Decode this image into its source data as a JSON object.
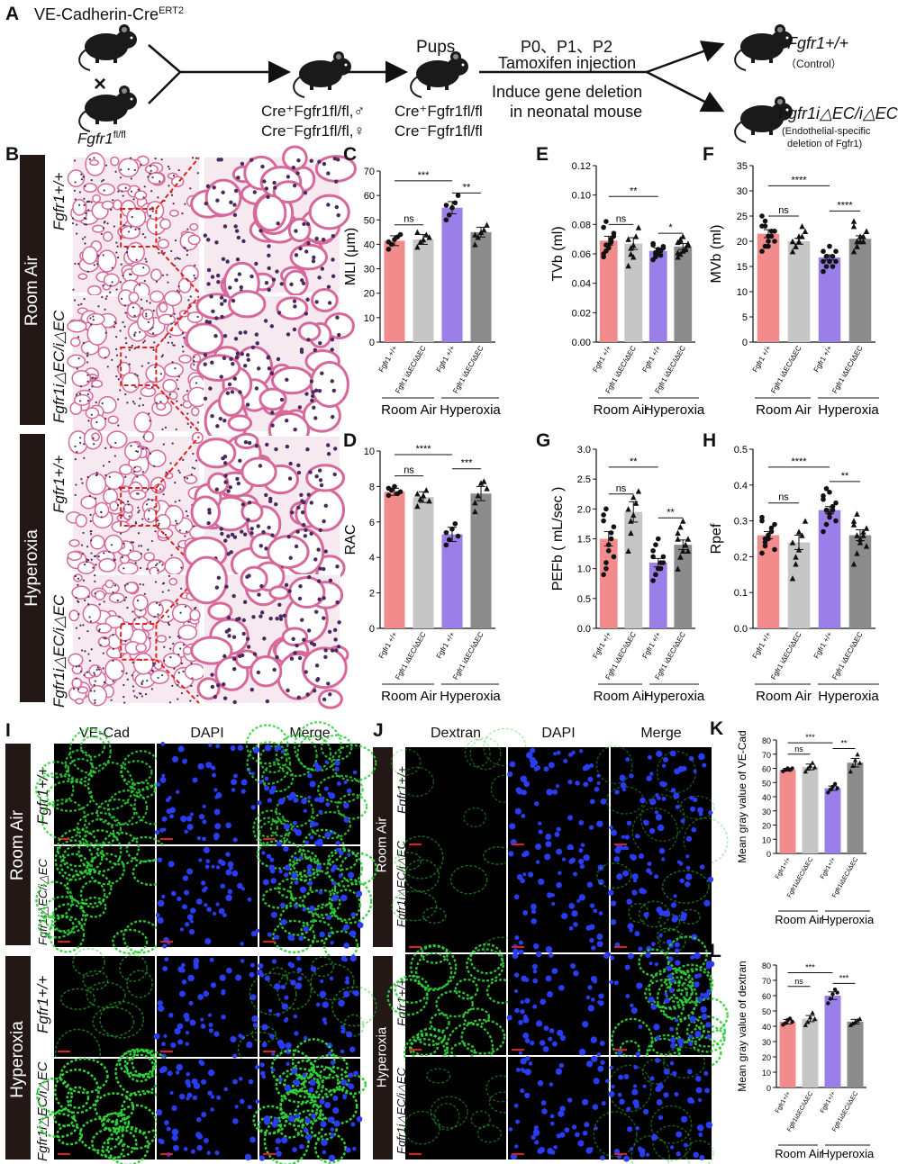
{
  "panel_letters": {
    "A": "A",
    "B": "B",
    "C": "C",
    "D": "D",
    "E": "E",
    "F": "F",
    "G": "G",
    "H": "H",
    "I": "I",
    "J": "J",
    "K": "K",
    "L": "L"
  },
  "schematic": {
    "mouse_line_1": "VE-Cadherin-Cre",
    "mouse_line_1_sup": "ERT2",
    "cross": "×",
    "mouse_line_2": "Fgfr1",
    "mouse_line_2_sup": "fl/fl",
    "offspring_1": "Cre⁺Fgfr1fl/fl,♂",
    "offspring_2": "Cre⁻Fgfr1fl/fl,♀",
    "pups_label": "Pups",
    "pups_1": "Cre⁺Fgfr1fl/fl",
    "pups_2": "Cre⁻Fgfr1fl/fl",
    "injection_line_1": "P0、P1、P2",
    "injection_line_2": "Tamoxifen injection",
    "deletion_line_1": "Induce gene deletion",
    "deletion_line_2": "in neonatal mouse",
    "result_1": "Fgfr1+/+",
    "result_1_note": "（Control）",
    "result_2": "Fgfr1i△EC/i△EC",
    "result_2_note_1": "(Endothelial-specific",
    "result_2_note_2": "deletion of Fgfr1)"
  },
  "histology": {
    "group_1": "Room Air",
    "group_2": "Hyperoxia",
    "row_wt": "Fgfr1+/+",
    "row_ko": "Fgfr1i△EC/i△EC"
  },
  "fluorescence_I": {
    "cols": [
      "VE-Cad",
      "DAPI",
      "Merge"
    ],
    "group_1": "Room Air",
    "group_2": "Hyperoxia",
    "row_wt": "Fgfr1+/+",
    "row_ko": "Fgfr1i△EC/i△EC"
  },
  "fluorescence_J": {
    "cols": [
      "Dextran",
      "DAPI",
      "Merge"
    ],
    "group_1": "Room Air",
    "group_2": "Hyperoxia",
    "row_wt": "Fgfr1+/+",
    "row_ko": "Fgfr1i△EC/i△EC"
  },
  "colors": {
    "room_air_wt": "#f28b8c",
    "room_air_ko": "#c6c6c6",
    "hyperoxia_wt": "#9b7fe8",
    "hyperoxia_ko": "#8c8c8c"
  },
  "chart_data": [
    {
      "panel": "C",
      "type": "bar",
      "ylabel": "MLI (μm)",
      "ylim": [
        0,
        70
      ],
      "yticks": [
        0,
        10,
        20,
        30,
        40,
        50,
        60,
        70
      ],
      "categories": [
        "Fgfr1 +/+",
        "Fgfr1 iΔEC/iΔEC",
        "Fgfr1 +/+",
        "Fgfr1 iΔEC/iΔEC"
      ],
      "groups": [
        "Room Air",
        "Hyperoxia"
      ],
      "values": [
        41.5,
        42,
        55,
        45
      ],
      "errors": [
        2,
        2,
        2.5,
        2
      ],
      "points": [
        [
          38,
          40,
          42,
          43,
          44,
          41
        ],
        [
          39,
          41,
          42,
          44,
          43,
          45
        ],
        [
          50,
          52,
          55,
          57,
          60,
          56
        ],
        [
          40,
          43,
          45,
          46,
          48,
          44
        ]
      ],
      "sig": [
        {
          "a": 0,
          "b": 1,
          "label": "ns",
          "y": 48
        },
        {
          "a": 0,
          "b": 2,
          "label": "***",
          "y": 66
        },
        {
          "a": 2,
          "b": 3,
          "label": "**",
          "y": 61
        }
      ]
    },
    {
      "panel": "D",
      "type": "bar",
      "ylabel": "RAC",
      "ylim": [
        0,
        10
      ],
      "yticks": [
        0,
        2,
        4,
        6,
        8,
        10
      ],
      "categories": [
        "Fgfr1 +/+",
        "Fgfr1 iΔEC/iΔEC",
        "Fgfr1 +/+",
        "Fgfr1 iΔEC/iΔEC"
      ],
      "groups": [
        "Room Air",
        "Hyperoxia"
      ],
      "values": [
        7.7,
        7.4,
        5.3,
        7.6
      ],
      "errors": [
        0.2,
        0.3,
        0.4,
        0.4
      ],
      "points": [
        [
          7.5,
          7.8,
          8.0,
          7.6,
          7.7,
          7.9
        ],
        [
          6.9,
          7.3,
          7.5,
          7.8,
          7.2,
          7.6
        ],
        [
          4.7,
          5.0,
          5.6,
          5.9,
          5.2,
          5.4
        ],
        [
          6.6,
          7.5,
          8.2,
          8.3,
          7.9,
          7.1
        ]
      ],
      "sig": [
        {
          "a": 0,
          "b": 1,
          "label": "ns",
          "y": 8.6
        },
        {
          "a": 0,
          "b": 2,
          "label": "****",
          "y": 9.8
        },
        {
          "a": 2,
          "b": 3,
          "label": "***",
          "y": 9.0
        }
      ]
    },
    {
      "panel": "E",
      "type": "bar",
      "ylabel": "TVb (ml)",
      "ylim": [
        0,
        0.12
      ],
      "yticks": [
        0.0,
        0.02,
        0.04,
        0.06,
        0.08,
        0.1,
        0.12
      ],
      "categories": [
        "Fgfr1 +/+",
        "Fgfr1 iΔEC/iΔEC",
        "Fgfr1 +/+",
        "Fgfr1 iΔEC/iΔEC"
      ],
      "groups": [
        "Room Air",
        "Hyperoxia"
      ],
      "values": [
        0.069,
        0.067,
        0.062,
        0.065
      ],
      "errors": [
        0.003,
        0.004,
        0.002,
        0.002
      ],
      "points": [
        [
          0.058,
          0.062,
          0.066,
          0.07,
          0.074,
          0.078,
          0.082,
          0.064,
          0.068,
          0.072,
          0.06,
          0.066
        ],
        [
          0.052,
          0.06,
          0.066,
          0.072,
          0.078,
          0.07,
          0.064,
          0.058
        ],
        [
          0.056,
          0.058,
          0.06,
          0.062,
          0.064,
          0.066,
          0.061,
          0.063,
          0.059,
          0.065,
          0.067,
          0.06
        ],
        [
          0.058,
          0.06,
          0.062,
          0.064,
          0.066,
          0.068,
          0.07,
          0.072,
          0.063,
          0.067,
          0.061,
          0.069
        ]
      ],
      "sig": [
        {
          "a": 0,
          "b": 1,
          "label": "ns",
          "y": 0.08
        },
        {
          "a": 0,
          "b": 2,
          "label": "**",
          "y": 0.099
        },
        {
          "a": 2,
          "b": 3,
          "label": "*",
          "y": 0.074
        }
      ]
    },
    {
      "panel": "F",
      "type": "bar",
      "ylabel": "MVb (ml)",
      "ylim": [
        0,
        35
      ],
      "yticks": [
        0,
        5,
        10,
        15,
        20,
        25,
        30,
        35
      ],
      "categories": [
        "Fgfr1 +/+",
        "Fgfr1 iΔEC/iΔEC",
        "Fgfr1 +/+",
        "Fgfr1 iΔEC/iΔEC"
      ],
      "groups": [
        "Room Air",
        "Hyperoxia"
      ],
      "values": [
        21.5,
        20,
        16.8,
        20.5
      ],
      "errors": [
        0.8,
        0.6,
        0.5,
        0.6
      ],
      "points": [
        [
          18,
          19,
          20,
          21,
          22,
          23,
          24,
          21,
          22,
          20,
          25,
          23,
          19
        ],
        [
          18,
          19,
          20,
          21,
          22,
          20,
          19,
          21,
          23
        ],
        [
          14,
          15,
          16,
          17,
          18,
          16,
          17,
          19,
          15,
          16,
          18,
          17,
          16
        ],
        [
          18,
          19,
          20,
          21,
          22,
          23,
          19,
          21,
          20,
          22,
          24,
          20
        ]
      ],
      "sig": [
        {
          "a": 0,
          "b": 1,
          "label": "ns",
          "y": 25
        },
        {
          "a": 0,
          "b": 2,
          "label": "****",
          "y": 31
        },
        {
          "a": 2,
          "b": 3,
          "label": "****",
          "y": 26
        }
      ]
    },
    {
      "panel": "G",
      "type": "bar",
      "ylabel": "PEFb ( mL/sec )",
      "ylim": [
        0,
        3.0
      ],
      "yticks": [
        0.0,
        0.5,
        1.0,
        1.5,
        2.0,
        2.5,
        3.0
      ],
      "categories": [
        "Fgfr1 +/+",
        "Fgfr1 iΔEC/iΔEC",
        "Fgfr1 +/+",
        "Fgfr1 iΔEC/iΔEC"
      ],
      "groups": [
        "Room Air",
        "Hyperoxia"
      ],
      "values": [
        1.5,
        1.95,
        1.1,
        1.4
      ],
      "errors": [
        0.12,
        0.17,
        0.07,
        0.08
      ],
      "points": [
        [
          0.9,
          1.1,
          1.3,
          1.5,
          1.7,
          1.9,
          2.0,
          1.4,
          1.6,
          1.2,
          1.8,
          1.0
        ],
        [
          1.3,
          1.6,
          1.9,
          2.1,
          2.3,
          2.0,
          1.8,
          2.2
        ],
        [
          0.8,
          0.9,
          1.0,
          1.1,
          1.2,
          1.3,
          1.4,
          1.5,
          1.0,
          1.1,
          1.2,
          0.9
        ],
        [
          1.0,
          1.2,
          1.3,
          1.4,
          1.5,
          1.6,
          1.7,
          1.8,
          1.4,
          1.3,
          1.5,
          1.2
        ]
      ],
      "sig": [
        {
          "a": 0,
          "b": 1,
          "label": "ns",
          "y": 2.25
        },
        {
          "a": 0,
          "b": 2,
          "label": "**",
          "y": 2.7
        },
        {
          "a": 2,
          "b": 3,
          "label": "**",
          "y": 1.85
        }
      ]
    },
    {
      "panel": "H",
      "type": "bar",
      "ylabel": "Rpef",
      "ylim": [
        0,
        0.5
      ],
      "yticks": [
        0.0,
        0.1,
        0.2,
        0.3,
        0.4,
        0.5
      ],
      "categories": [
        "Fgfr1 +/+",
        "Fgfr1 iΔEC/iΔEC",
        "Fgfr1 +/+",
        "Fgfr1 iΔEC/iΔEC"
      ],
      "groups": [
        "Room Air",
        "Hyperoxia"
      ],
      "values": [
        0.26,
        0.24,
        0.33,
        0.26
      ],
      "errors": [
        0.01,
        0.02,
        0.01,
        0.015
      ],
      "points": [
        [
          0.21,
          0.23,
          0.25,
          0.27,
          0.29,
          0.31,
          0.24,
          0.26,
          0.28,
          0.22,
          0.3,
          0.25
        ],
        [
          0.14,
          0.18,
          0.22,
          0.26,
          0.3,
          0.24,
          0.2,
          0.27
        ],
        [
          0.27,
          0.29,
          0.31,
          0.33,
          0.35,
          0.37,
          0.39,
          0.32,
          0.34,
          0.3,
          0.36,
          0.33,
          0.38
        ],
        [
          0.18,
          0.21,
          0.24,
          0.26,
          0.28,
          0.3,
          0.32,
          0.25,
          0.27,
          0.23,
          0.29,
          0.26
        ]
      ],
      "sig": [
        {
          "a": 0,
          "b": 1,
          "label": "ns",
          "y": 0.35
        },
        {
          "a": 0,
          "b": 2,
          "label": "****",
          "y": 0.45
        },
        {
          "a": 2,
          "b": 3,
          "label": "**",
          "y": 0.41
        }
      ]
    },
    {
      "panel": "K",
      "type": "bar",
      "ylabel": "Mean gray value of VE-Cad",
      "ylim": [
        0,
        80
      ],
      "yticks": [
        0,
        10,
        20,
        30,
        40,
        50,
        60,
        70,
        80
      ],
      "categories": [
        "Fgfr1+/+",
        "Fgfr1iΔEC/iΔEC",
        "Fgfr1+/+",
        "Fgfr1iΔEC/iΔEC"
      ],
      "groups": [
        "Room Air",
        "Hyperoxia"
      ],
      "values": [
        59,
        61,
        46,
        64
      ],
      "errors": [
        1,
        2,
        1.5,
        3
      ],
      "points": [
        [
          58,
          59,
          60,
          59,
          60
        ],
        [
          58,
          60,
          62,
          64,
          61
        ],
        [
          43,
          45,
          47,
          49,
          46
        ],
        [
          58,
          62,
          66,
          70,
          64
        ]
      ],
      "sig": [
        {
          "a": 0,
          "b": 1,
          "label": "ns",
          "y": 70
        },
        {
          "a": 0,
          "b": 2,
          "label": "***",
          "y": 78
        },
        {
          "a": 2,
          "b": 3,
          "label": "**",
          "y": 74
        }
      ]
    },
    {
      "panel": "L",
      "type": "bar",
      "ylabel": "Mean gray value of dextran",
      "ylim": [
        0,
        80
      ],
      "yticks": [
        0,
        10,
        20,
        30,
        40,
        50,
        60,
        70,
        80
      ],
      "categories": [
        "Fgfr1+/+",
        "Fgfr1iΔEC/iΔEC",
        "Fgfr1+/+",
        "Fgfr1iΔEC/iΔEC"
      ],
      "groups": [
        "Room Air",
        "Hyperoxia"
      ],
      "values": [
        43,
        45,
        60,
        43
      ],
      "errors": [
        1.5,
        2,
        2.5,
        1.5
      ],
      "points": [
        [
          41,
          42,
          44,
          45,
          43
        ],
        [
          41,
          43,
          46,
          49,
          45
        ],
        [
          55,
          58,
          61,
          64,
          62
        ],
        [
          41,
          42,
          43,
          44,
          45
        ]
      ],
      "sig": [
        {
          "a": 0,
          "b": 1,
          "label": "ns",
          "y": 66
        },
        {
          "a": 0,
          "b": 2,
          "label": "***",
          "y": 75
        },
        {
          "a": 2,
          "b": 3,
          "label": "***",
          "y": 68
        }
      ]
    }
  ]
}
